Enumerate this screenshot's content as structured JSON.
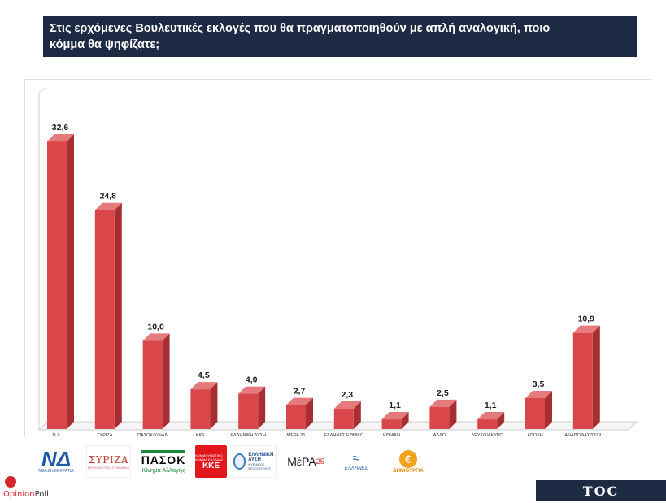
{
  "header": {
    "title_line1": "Στις ερχόμενες Βουλευτικές εκλογές που θα πραγματοποιηθούν με απλή αναλογική, ποιο",
    "title_line2": "κόμμα θα ψηφίζατε;"
  },
  "chart_data": {
    "type": "bar",
    "style": "3d-column",
    "bar_color": "#d9474a",
    "bar_side_color": "#a82f31",
    "bar_top_color": "#e57a7c",
    "ylim": [
      0,
      35
    ],
    "grid": false,
    "categories": [
      "Ν.Δ.",
      "ΣΥΡΙΖΑ",
      "ΠΑΣΟΚ/ΚΙΝΑΛ",
      "ΚΚΕ",
      "ΕΛΛΗΝΙΚΗ ΛΥΣΗ",
      "ΜΕΡΑ 25",
      "ΕΛΛΗΝΕΣ ΕΘΝΙΚΟ ΚΟΜΜΑ",
      "ΕΘΝΙΚΗ ΔΗΜΙΟΥΡΓΙΑ",
      "ΑΛΛΟ",
      "ΛΕΥΚΟ/ΑΚΥΡΟ",
      "ΑΠΟΧΗ",
      "ΑΝΑΠΟΦΑΣΙΣΤΟΙ"
    ],
    "values": [
      32.6,
      24.8,
      10.0,
      4.5,
      4.0,
      2.7,
      2.3,
      1.1,
      2.5,
      1.1,
      3.5,
      10.9
    ],
    "value_labels": [
      "32,6",
      "24,8",
      "10,0",
      "4,5",
      "4,0",
      "2,7",
      "2,3",
      "1,1",
      "2,5",
      "1,1",
      "3,5",
      "10,9"
    ]
  },
  "logos": {
    "nd": {
      "mark": "ΝΔ",
      "text": "ΝΕΑ ΔΗΜΟΚΡΑΤΙΑ",
      "icon": "nd-logo-icon"
    },
    "syriza": {
      "mark": "ΣΥΡΙΖΑ",
      "text": "ΠΡΟΟΔΕΥΤΙΚΗ ΣΥΜΜΑΧΙΑ",
      "icon": "syriza-logo-icon"
    },
    "pasok": {
      "mark": "ΠΑΣΟΚ",
      "text": "Κίνημα Αλλαγής",
      "icon": "pasok-logo-icon"
    },
    "kke": {
      "mark": "ΚΚΕ",
      "text": "ΚΟΜΜΟΥΝΙΣΤΙΚΟ ΚΟΜΜΑ ΕΛΛΑΔΑΣ",
      "icon": "kke-logo-icon"
    },
    "el": {
      "mark1": "ΕΛΛΗΝΙΚΗ",
      "mark2": "ΛΥΣΗ",
      "text": "ΚΥΡΙΑΚΟΣ ΒΕΛΟΠΟΥΛΟΣ",
      "icon": "elliniki-lysi-logo-icon"
    },
    "mera": {
      "mark": "ΜέΡΑ",
      "num": "25",
      "icon": "mera25-logo-icon"
    },
    "ellines": {
      "mark": "ΕΛΛΗΝΕΣ",
      "icon": "ellines-logo-icon"
    },
    "dim": {
      "mark": "€",
      "text": "ΔΗΜΙΟΥΡΓΙΑ",
      "icon": "dimiourgia-logo-icon"
    }
  },
  "footer": {
    "opinion_a": "Opinion",
    "opinion_b": "Poll",
    "toc": "TOC"
  }
}
